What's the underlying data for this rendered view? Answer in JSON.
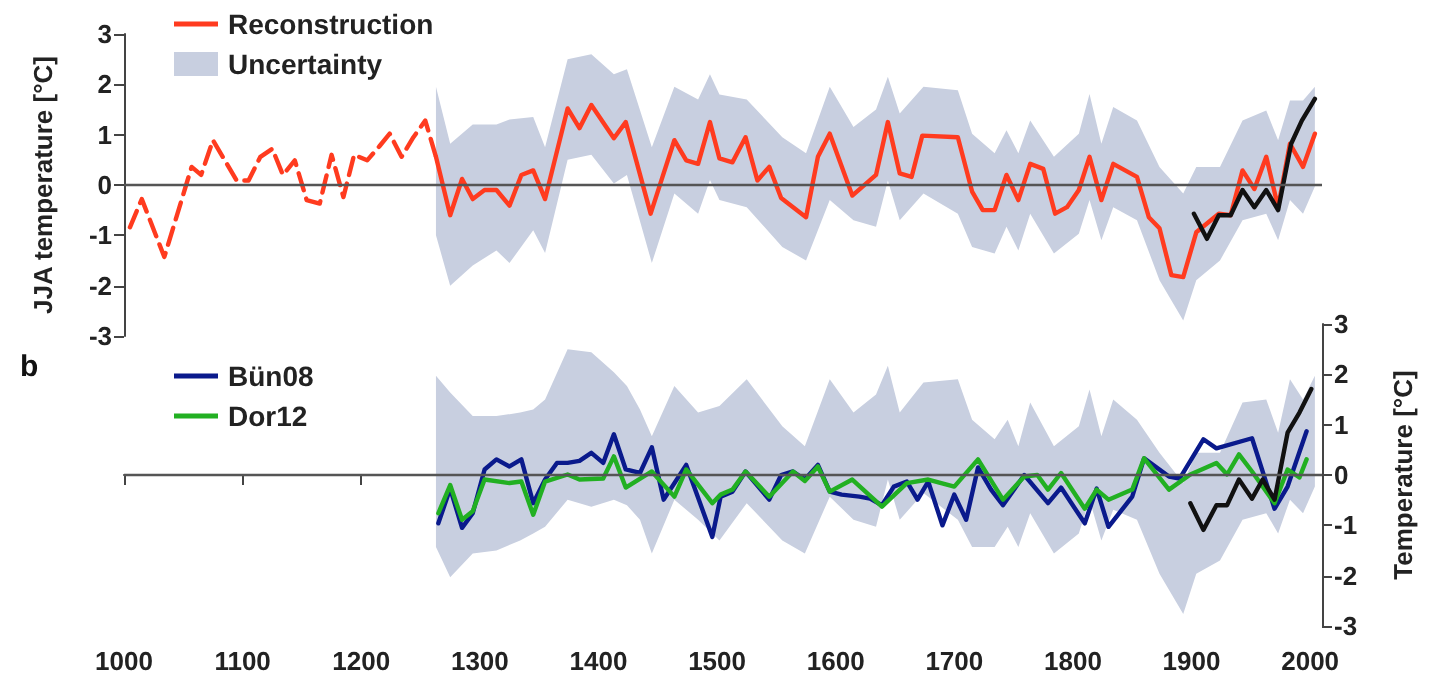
{
  "chart_data": [
    {
      "type": "line",
      "ylabel": "JJA temperature [°C]",
      "xlim": [
        1000,
        2010
      ],
      "xticks": [
        1000,
        1100,
        1200,
        1300,
        1400,
        1500,
        1600,
        1700,
        1800,
        1900,
        2000
      ],
      "ylim": [
        -3,
        3
      ],
      "yticks": [
        -3,
        -2,
        -1,
        0,
        1,
        2,
        3
      ],
      "tick_labels": "y",
      "legend": "top left",
      "marker": "none",
      "ref_lines": [
        {
          "axis": "y",
          "value": 0,
          "color": "#555555"
        }
      ],
      "series": [
        {
          "name": "Reconstruction",
          "color": "#ff3b1f",
          "x": [
            1263,
            1275,
            1285,
            1294,
            1304,
            1314,
            1325,
            1335,
            1345,
            1355,
            1374,
            1384,
            1394,
            1413,
            1423,
            1444,
            1454,
            1464,
            1474,
            1484,
            1494,
            1502,
            1513,
            1524,
            1534,
            1544,
            1554,
            1575,
            1585,
            1595,
            1614,
            1634,
            1644,
            1654,
            1664,
            1673,
            1703,
            1715,
            1724,
            1734,
            1744,
            1754,
            1764,
            1775,
            1785,
            1795,
            1805,
            1814,
            1824,
            1834,
            1854,
            1864,
            1873,
            1883,
            1893,
            1904,
            1923,
            1933,
            1943,
            1953,
            1963,
            1973,
            1983,
            1994,
            2004
          ],
          "values": [
            0.56,
            -0.6,
            0.12,
            -0.28,
            -0.1,
            -0.1,
            -0.41,
            0.2,
            0.29,
            -0.28,
            1.52,
            1.13,
            1.59,
            0.93,
            1.25,
            -0.57,
            0.16,
            0.89,
            0.49,
            0.42,
            1.25,
            0.53,
            0.45,
            0.95,
            0.09,
            0.36,
            -0.26,
            -0.64,
            0.56,
            1.02,
            -0.21,
            0.2,
            1.25,
            0.23,
            0.16,
            0.98,
            0.95,
            -0.13,
            -0.5,
            -0.5,
            0.2,
            -0.3,
            0.42,
            0.32,
            -0.57,
            -0.44,
            -0.1,
            0.56,
            -0.3,
            0.42,
            0.16,
            -0.64,
            -0.86,
            -1.79,
            -1.83,
            -0.94,
            -0.57,
            -0.6,
            0.29,
            -0.08,
            0.56,
            -0.44,
            0.82,
            0.36,
            1.02
          ]
        },
        {
          "name": "Uncertainty",
          "type": "area",
          "color": "#c8cfe0",
          "values": [
            null,
            null,
            null,
            null,
            null,
            null,
            null,
            null,
            null,
            null,
            null,
            null,
            null,
            null,
            null,
            null,
            null,
            null,
            null,
            null,
            null,
            null,
            null,
            null,
            null,
            null,
            null,
            null,
            null,
            null,
            null,
            null,
            null,
            null,
            null,
            null,
            null,
            null,
            null,
            null,
            null,
            null,
            null,
            null,
            null,
            null,
            null
          ],
          "x": [
            1263,
            1275,
            1294,
            1314,
            1325,
            1345,
            1355,
            1374,
            1394,
            1413,
            1424,
            1445,
            1464,
            1484,
            1494,
            1502,
            1525,
            1555,
            1575,
            1595,
            1615,
            1634,
            1644,
            1654,
            1674,
            1703,
            1715,
            1734,
            1744,
            1754,
            1764,
            1784,
            1805,
            1814,
            1824,
            1834,
            1854,
            1873,
            1893,
            1904,
            1924,
            1943,
            1963,
            1973,
            1983,
            1994,
            2004
          ],
          "upper": [
            1.95,
            0.82,
            1.2,
            1.2,
            1.3,
            1.35,
            0.75,
            2.5,
            2.6,
            2.2,
            2.3,
            0.75,
            1.95,
            1.7,
            2.2,
            1.8,
            1.7,
            0.95,
            0.63,
            1.95,
            1.15,
            1.5,
            2.15,
            1.42,
            1.95,
            1.88,
            1.02,
            0.63,
            1.09,
            0.63,
            1.28,
            0.56,
            1.02,
            1.81,
            0.82,
            1.55,
            1.28,
            0.36,
            -0.17,
            0.36,
            0.36,
            1.28,
            1.48,
            0.89,
            1.68,
            1.68,
            1.95
          ],
          "lower": [
            -1.0,
            -2.0,
            -1.6,
            -1.3,
            -1.55,
            -0.9,
            -1.35,
            0.5,
            0.6,
            0.03,
            0.2,
            -1.55,
            -0.17,
            -0.57,
            0.1,
            -0.3,
            -0.44,
            -1.23,
            -1.5,
            -0.3,
            -0.7,
            -0.83,
            0.09,
            -0.7,
            -0.17,
            -0.57,
            -1.23,
            -1.36,
            -0.83,
            -1.3,
            -0.57,
            -1.36,
            -0.97,
            -0.3,
            -1.1,
            -0.44,
            -0.7,
            -1.89,
            -2.69,
            -1.89,
            -1.5,
            -0.7,
            -0.57,
            -1.1,
            -0.3,
            -0.57,
            -0.03
          ]
        },
        {
          "color": "#ff3b1f",
          "line_style": "dashed",
          "x": [
            1005,
            1015,
            1034,
            1057,
            1065,
            1075,
            1095,
            1105,
            1115,
            1125,
            1134,
            1144,
            1154,
            1165,
            1175,
            1185,
            1194,
            1205,
            1215,
            1224,
            1234,
            1244,
            1254,
            1263
          ],
          "values": [
            -0.84,
            -0.28,
            -1.43,
            0.36,
            0.2,
            0.89,
            0.09,
            0.09,
            0.56,
            0.72,
            0.2,
            0.49,
            -0.3,
            -0.37,
            0.6,
            -0.24,
            0.6,
            0.49,
            0.76,
            1.02,
            0.56,
            0.95,
            1.28,
            0.56
          ]
        },
        {
          "color": "#111111",
          "x": [
            1902,
            1913,
            1923,
            1933,
            1943,
            1953,
            1963,
            1973,
            1984,
            1993,
            2004
          ],
          "values": [
            -0.57,
            -1.07,
            -0.6,
            -0.6,
            -0.1,
            -0.44,
            -0.1,
            -0.5,
            0.82,
            1.28,
            1.71
          ]
        }
      ]
    },
    {
      "type": "line",
      "annotations": [
        "b"
      ],
      "y2label": "Temperature [°C]",
      "xlim": [
        1000,
        2010
      ],
      "xticks": [
        1000,
        1100,
        1200,
        1300,
        1400,
        1500,
        1600,
        1700,
        1800,
        1900,
        2000
      ],
      "y2lim": [
        -3,
        3
      ],
      "y2ticks": [
        -3,
        -2,
        -1,
        0,
        1,
        2,
        3
      ],
      "legend": "top left",
      "marker": "none",
      "ref_lines": [
        {
          "axis": "y2",
          "value": 0,
          "color": "#555555"
        }
      ],
      "series": [
        {
          "type": "area",
          "axis": "y2",
          "color": "#c8cfe0",
          "values": [
            null,
            null,
            null,
            null,
            null,
            null,
            null,
            null,
            null,
            null,
            null,
            null,
            null,
            null,
            null,
            null,
            null,
            null,
            null,
            null,
            null,
            null,
            null,
            null,
            null,
            null,
            null,
            null,
            null,
            null,
            null,
            null,
            null,
            null,
            null,
            null,
            null,
            null,
            null,
            null,
            null,
            null,
            null,
            null,
            null,
            null,
            null
          ],
          "x": [
            1263,
            1275,
            1294,
            1314,
            1334,
            1345,
            1355,
            1374,
            1394,
            1413,
            1424,
            1435,
            1445,
            1464,
            1484,
            1502,
            1525,
            1555,
            1574,
            1595,
            1615,
            1634,
            1644,
            1654,
            1674,
            1703,
            1715,
            1734,
            1745,
            1754,
            1764,
            1784,
            1805,
            1814,
            1824,
            1834,
            1854,
            1873,
            1893,
            1904,
            1924,
            1943,
            1963,
            1973,
            1983,
            1994,
            2004
          ],
          "upper": [
            1.97,
            1.64,
            1.17,
            1.17,
            1.24,
            1.3,
            1.5,
            2.5,
            2.44,
            2.04,
            1.77,
            1.3,
            0.77,
            1.77,
            1.24,
            1.37,
            1.9,
            0.97,
            0.57,
            1.9,
            1.24,
            1.6,
            2.17,
            1.24,
            1.84,
            1.9,
            1.1,
            0.71,
            1.1,
            0.57,
            1.44,
            0.57,
            0.97,
            1.7,
            0.77,
            1.5,
            1.1,
            0.44,
            -0.16,
            0.44,
            0.44,
            1.44,
            1.5,
            0.84,
            1.9,
            1.5,
            1.97
          ],
          "lower": [
            -1.43,
            -2.03,
            -1.56,
            -1.5,
            -1.3,
            -1.16,
            -1.03,
            -0.49,
            -0.63,
            -0.49,
            -0.6,
            -0.89,
            -1.56,
            -0.49,
            -0.89,
            -1.3,
            -0.56,
            -1.3,
            -1.56,
            -0.43,
            -0.89,
            -1.03,
            -0.09,
            -0.89,
            -0.36,
            -0.89,
            -1.43,
            -1.43,
            -1.03,
            -1.43,
            -0.76,
            -1.56,
            -1.16,
            -0.49,
            -1.3,
            -0.69,
            -0.89,
            -1.96,
            -2.76,
            -1.96,
            -1.7,
            -0.89,
            -0.76,
            -1.16,
            -0.49,
            -0.76,
            -0.23
          ]
        },
        {
          "name": "Bün08",
          "axis": "y2",
          "color": "#0a1a8c",
          "x": [
            1265,
            1275,
            1285,
            1294,
            1304,
            1314,
            1325,
            1335,
            1345,
            1355,
            1365,
            1374,
            1384,
            1394,
            1404,
            1413,
            1423,
            1435,
            1445,
            1455,
            1474,
            1496,
            1503,
            1513,
            1524,
            1544,
            1554,
            1564,
            1574,
            1585,
            1595,
            1605,
            1620,
            1629,
            1639,
            1649,
            1660,
            1669,
            1678,
            1690,
            1700,
            1710,
            1720,
            1731,
            1741,
            1759,
            1779,
            1790,
            1810,
            1820,
            1830,
            1850,
            1860,
            1881,
            1890,
            1910,
            1921,
            1951,
            1970,
            1981,
            1997
          ],
          "values": [
            -0.96,
            -0.27,
            -1.05,
            -0.76,
            0.11,
            0.31,
            0.17,
            0.31,
            -0.56,
            -0.09,
            0.24,
            0.24,
            0.28,
            0.44,
            0.24,
            0.81,
            0.11,
            0.04,
            0.55,
            -0.49,
            0.2,
            -1.23,
            -0.43,
            -0.33,
            0.07,
            -0.49,
            0.0,
            0.07,
            -0.09,
            0.2,
            -0.33,
            -0.39,
            -0.43,
            -0.47,
            -0.6,
            -0.23,
            -0.13,
            -0.49,
            -0.13,
            -1.0,
            -0.39,
            -0.89,
            0.15,
            -0.29,
            -0.6,
            0.0,
            -0.56,
            -0.25,
            -0.96,
            -0.27,
            -1.03,
            -0.43,
            0.33,
            -0.03,
            -0.07,
            0.71,
            0.53,
            0.73,
            -0.67,
            -0.23,
            0.87
          ]
        },
        {
          "name": "Dor12",
          "axis": "y2",
          "color": "#22b022",
          "x": [
            1265,
            1275,
            1285,
            1294,
            1304,
            1325,
            1335,
            1345,
            1355,
            1374,
            1384,
            1404,
            1413,
            1423,
            1445,
            1464,
            1474,
            1496,
            1503,
            1513,
            1524,
            1544,
            1564,
            1574,
            1585,
            1595,
            1614,
            1639,
            1660,
            1678,
            1700,
            1720,
            1741,
            1759,
            1770,
            1779,
            1790,
            1810,
            1820,
            1830,
            1850,
            1860,
            1881,
            1899,
            1921,
            1930,
            1940,
            1951,
            1970,
            1981,
            1991,
            1997
          ],
          "values": [
            -0.76,
            -0.2,
            -0.89,
            -0.72,
            -0.09,
            -0.16,
            -0.13,
            -0.79,
            -0.13,
            0.01,
            -0.09,
            -0.07,
            0.37,
            -0.25,
            0.07,
            -0.43,
            0.11,
            -0.56,
            -0.39,
            -0.29,
            0.07,
            -0.43,
            0.07,
            -0.12,
            0.17,
            -0.33,
            -0.09,
            -0.63,
            -0.16,
            -0.09,
            -0.23,
            0.31,
            -0.49,
            -0.03,
            0.0,
            -0.29,
            0.04,
            -0.67,
            -0.29,
            -0.49,
            -0.29,
            0.33,
            -0.29,
            0.01,
            0.24,
            0.01,
            0.41,
            0.07,
            -0.56,
            0.11,
            -0.05,
            0.31
          ]
        },
        {
          "axis": "y2",
          "color": "#111111",
          "x": [
            1899,
            1910,
            1921,
            1930,
            1940,
            1951,
            1960,
            1970,
            1981,
            1991,
            2001
          ],
          "values": [
            -0.56,
            -1.09,
            -0.6,
            -0.6,
            -0.09,
            -0.47,
            -0.09,
            -0.49,
            0.84,
            1.24,
            1.71
          ]
        }
      ]
    }
  ]
}
